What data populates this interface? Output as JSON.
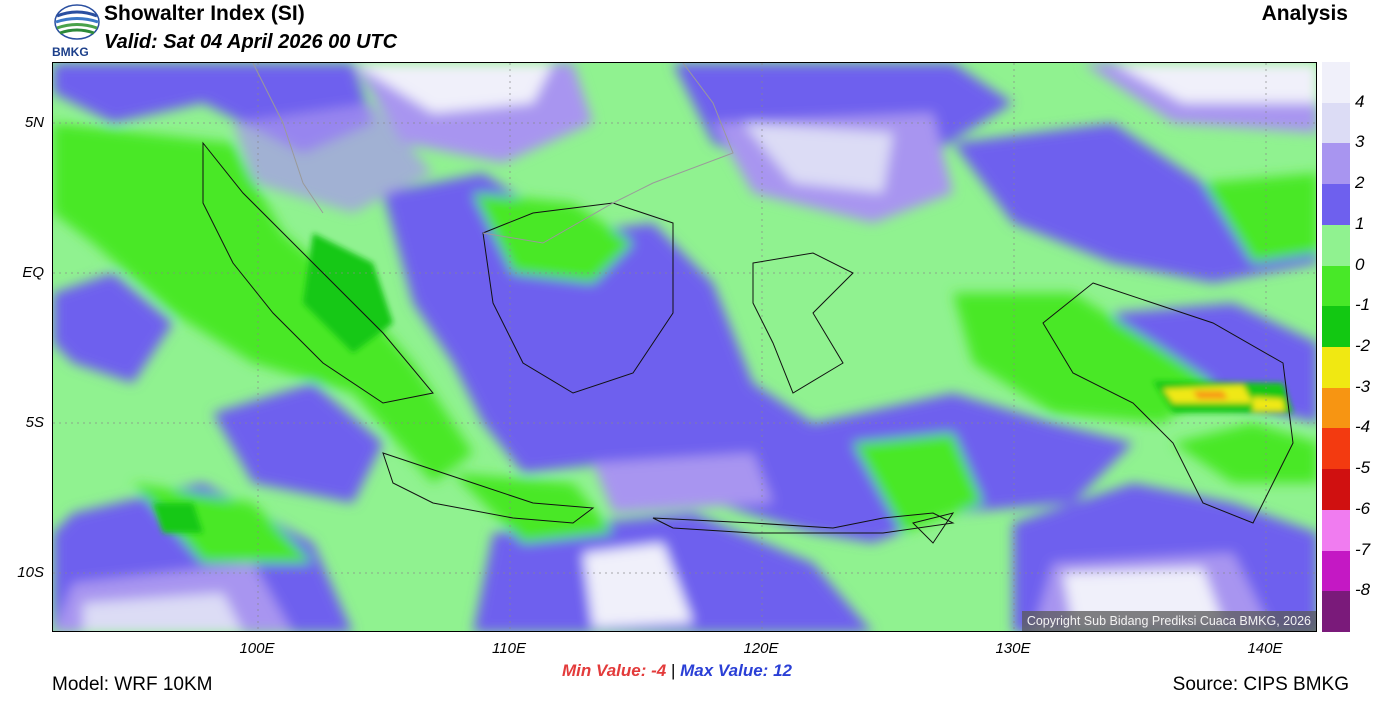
{
  "header": {
    "title": "Showalter Index (SI)",
    "valid": "Valid: Sat 04 April 2026 00 UTC",
    "mode": "Analysis",
    "logo_text": "BMKG"
  },
  "axes": {
    "lat_labels": [
      "5N",
      "EQ",
      "5S",
      "10S"
    ],
    "lon_labels": [
      "100E",
      "110E",
      "120E",
      "130E",
      "140E"
    ]
  },
  "legend": {
    "labels": [
      "4",
      "3",
      "2",
      "1",
      "0",
      "-1",
      "-2",
      "-3",
      "-4",
      "-5",
      "-6",
      "-7",
      "-8"
    ],
    "colors": [
      "#f0f0fa",
      "#dcdcf5",
      "#a895f0",
      "#6e60ee",
      "#90f290",
      "#48e828",
      "#12c812",
      "#f0e812",
      "#f79512",
      "#f33a10",
      "#d01010",
      "#f07cf0",
      "#c418c4",
      "#7a1a7a"
    ]
  },
  "stats": {
    "min_label": "Min Value:",
    "min_value": "-4",
    "separator": "|",
    "max_label": "Max Value:",
    "max_value": "12"
  },
  "footer": {
    "model": "Model: WRF 10KM",
    "source": "Source: CIPS BMKG",
    "copyright": "Copyright Sub Bidang Prediksi Cuaca BMKG, 2026"
  }
}
